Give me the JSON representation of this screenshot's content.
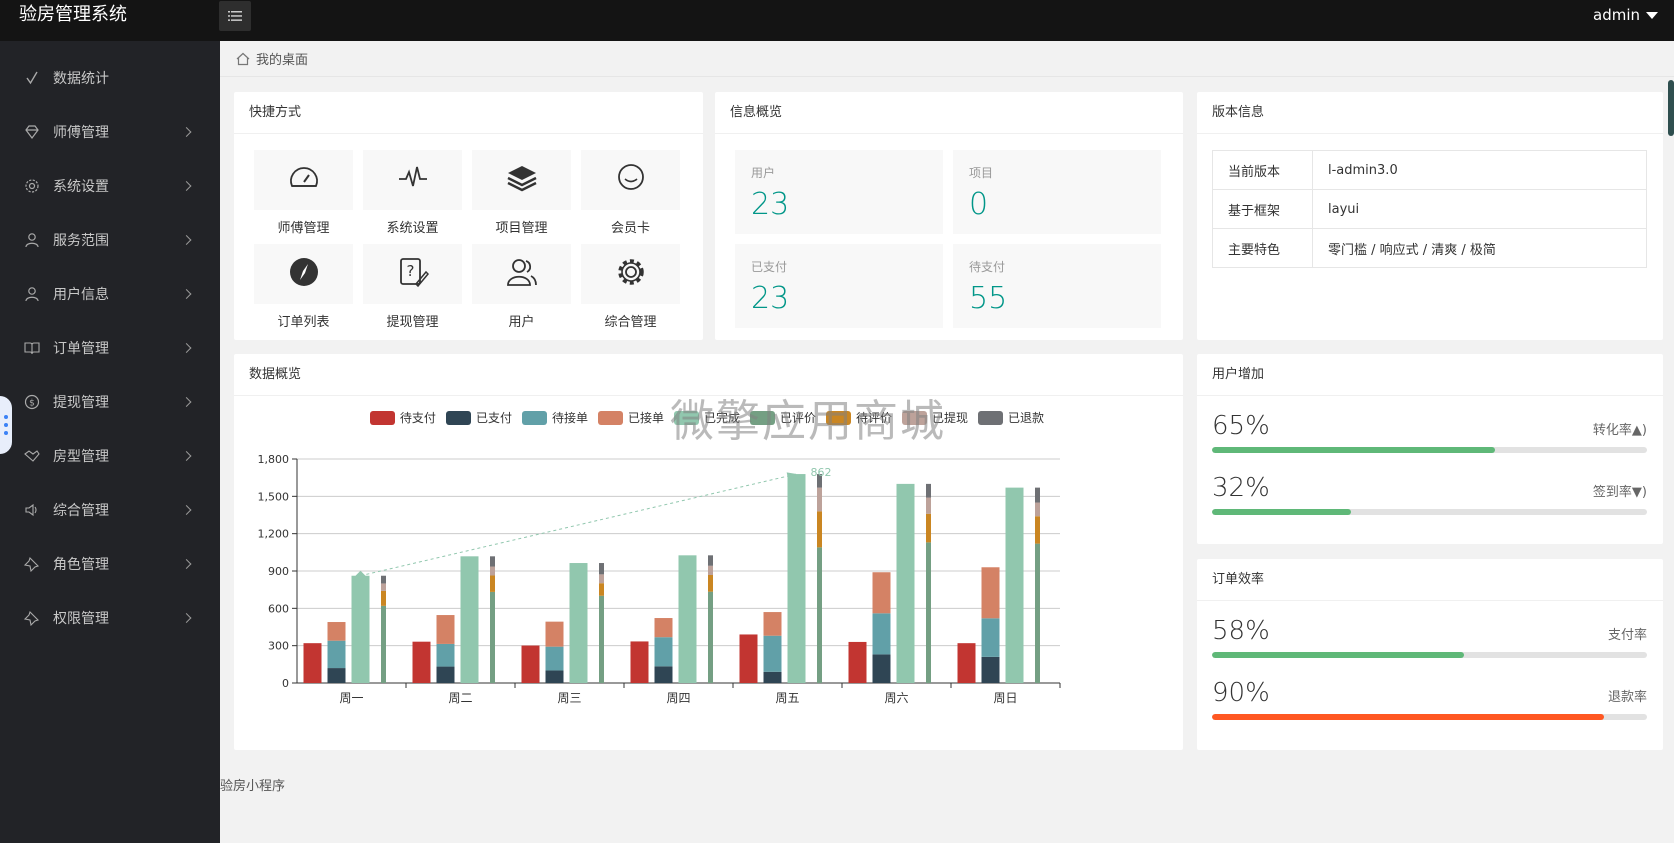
{
  "header": {
    "title": "验房管理系统",
    "user": "admin"
  },
  "sidebar": {
    "items": [
      {
        "label": "数据统计",
        "icon": "check-icon",
        "has_arrow": false
      },
      {
        "label": "师傅管理",
        "icon": "diamond-icon",
        "has_arrow": true
      },
      {
        "label": "系统设置",
        "icon": "gear-icon",
        "has_arrow": true
      },
      {
        "label": "服务范围",
        "icon": "user-icon",
        "has_arrow": true
      },
      {
        "label": "用户信息",
        "icon": "user-icon",
        "has_arrow": true
      },
      {
        "label": "订单管理",
        "icon": "book-icon",
        "has_arrow": true
      },
      {
        "label": "提现管理",
        "icon": "dollar-icon",
        "has_arrow": true
      },
      {
        "label": "房型管理",
        "icon": "handshake-icon",
        "has_arrow": true
      },
      {
        "label": "综合管理",
        "icon": "speaker-icon",
        "has_arrow": true
      },
      {
        "label": "角色管理",
        "icon": "pin-icon",
        "has_arrow": true
      },
      {
        "label": "权限管理",
        "icon": "pin-icon",
        "has_arrow": true
      }
    ]
  },
  "breadcrumb": {
    "label": "我的桌面"
  },
  "quick": {
    "title": "快捷方式",
    "items": [
      {
        "label": "师傅管理",
        "icon": "gauge-icon"
      },
      {
        "label": "系统设置",
        "icon": "pulse-icon"
      },
      {
        "label": "项目管理",
        "icon": "layers-icon"
      },
      {
        "label": "会员卡",
        "icon": "smile-icon"
      },
      {
        "label": "订单列表",
        "icon": "compass-icon"
      },
      {
        "label": "提现管理",
        "icon": "edit-icon"
      },
      {
        "label": "用户",
        "icon": "users-icon"
      },
      {
        "label": "综合管理",
        "icon": "gear-icon"
      }
    ]
  },
  "info": {
    "title": "信息概览",
    "stats": [
      {
        "label": "用户",
        "value": "23"
      },
      {
        "label": "项目",
        "value": "0"
      },
      {
        "label": "已支付",
        "value": "23"
      },
      {
        "label": "待支付",
        "value": "55"
      }
    ]
  },
  "version": {
    "title": "版本信息",
    "rows": [
      {
        "key": "当前版本",
        "value": "l-admin3.0"
      },
      {
        "key": "基于框架",
        "value": "layui"
      },
      {
        "key": "主要特色",
        "value": "零门槛 / 响应式 / 清爽 / 极简"
      }
    ]
  },
  "overview": {
    "title": "数据概览"
  },
  "chart_data": {
    "type": "bar",
    "categories": [
      "周一",
      "周二",
      "周三",
      "周四",
      "周五",
      "周六",
      "周日"
    ],
    "ylim": [
      0,
      1800
    ],
    "yticks": [
      "0",
      "300",
      "600",
      "900",
      "1,200",
      "1,500",
      "1,800"
    ],
    "colors": [
      "#c23531",
      "#2f4554",
      "#61a0a8",
      "#d48265",
      "#91c7ae",
      "#749f83",
      "#ca8622",
      "#bda29a",
      "#6e7074"
    ],
    "series": [
      {
        "name": "待支付",
        "stack": "a",
        "values": [
          320,
          332,
          301,
          334,
          390,
          330,
          320
        ]
      },
      {
        "name": "已支付",
        "stack": "b",
        "values": [
          120,
          132,
          101,
          134,
          90,
          230,
          210
        ]
      },
      {
        "name": "待接单",
        "stack": "b",
        "values": [
          220,
          182,
          191,
          234,
          290,
          330,
          310
        ]
      },
      {
        "name": "已接单",
        "stack": "b",
        "values": [
          150,
          232,
          201,
          154,
          190,
          330,
          410
        ]
      },
      {
        "name": "已完成",
        "stack": "c",
        "values": [
          862,
          1018,
          964,
          1026,
          1679,
          1600,
          1570
        ]
      },
      {
        "name": "已评价",
        "stack": "d",
        "values": [
          620,
          732,
          701,
          734,
          1090,
          1130,
          1120
        ]
      },
      {
        "name": "待评价",
        "stack": "d",
        "values": [
          120,
          132,
          101,
          134,
          290,
          230,
          220
        ]
      },
      {
        "name": "已提现",
        "stack": "d",
        "values": [
          60,
          72,
          71,
          74,
          190,
          130,
          110
        ]
      },
      {
        "name": "已退款",
        "stack": "d",
        "values": [
          62,
          82,
          91,
          84,
          109,
          110,
          120
        ]
      }
    ],
    "markline": {
      "from": "周一",
      "to": "周五",
      "label": "862"
    }
  },
  "user_growth": {
    "title": "用户增加",
    "rows": [
      {
        "value": "65%",
        "label": "转化率▲)",
        "percent": 65,
        "color": "#5fb878"
      },
      {
        "value": "32%",
        "label": "签到率▼)",
        "percent": 32,
        "color": "#5fb878"
      }
    ]
  },
  "order_eff": {
    "title": "订单效率",
    "rows": [
      {
        "value": "58%",
        "label": "支付率",
        "percent": 58,
        "color": "#5fb878"
      },
      {
        "value": "90%",
        "label": "退款率",
        "percent": 90,
        "color": "#ff5722"
      }
    ]
  },
  "footer": {
    "text": "验房小程序"
  },
  "watermark": {
    "text": "微擎应用商城"
  }
}
